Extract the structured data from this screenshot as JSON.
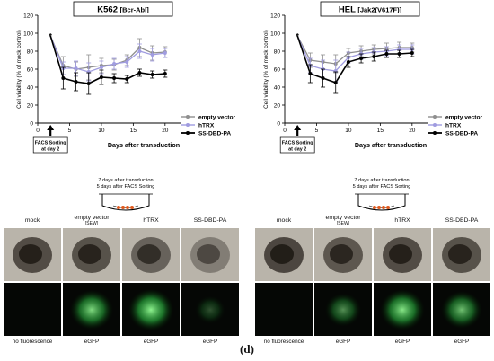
{
  "figure": {
    "panel_label": "(d)"
  },
  "chart_data": [
    {
      "type": "line",
      "title": "K562",
      "title_suffix": "[Bcr-Abl]",
      "xlabel": "Days after transduction",
      "ylabel": "Cell viability (% of mock control)",
      "xlim": [
        0,
        22
      ],
      "ylim": [
        0,
        120
      ],
      "xticks": [
        0,
        5,
        10,
        15,
        20
      ],
      "yticks": [
        0,
        20,
        40,
        60,
        80,
        100,
        120
      ],
      "grid": false,
      "legend_position": "right",
      "annotation": "FACS Sorting at day 2",
      "start_point": {
        "x": 2,
        "y": 97,
        "marker": "*"
      },
      "series": [
        {
          "name": "empty vector",
          "color": "#8f8f8f",
          "x": [
            2,
            4,
            6,
            8,
            10,
            12,
            14,
            16,
            18,
            20
          ],
          "y": [
            97,
            64,
            60,
            62,
            64,
            65,
            70,
            84,
            78,
            79
          ],
          "err": [
            0,
            10,
            8,
            14,
            8,
            6,
            6,
            10,
            8,
            6
          ]
        },
        {
          "name": "hTRX",
          "color": "#a09ce0",
          "x": [
            2,
            4,
            6,
            8,
            10,
            12,
            14,
            16,
            18,
            20
          ],
          "y": [
            97,
            61,
            61,
            57,
            62,
            66,
            68,
            80,
            76,
            78
          ],
          "err": [
            0,
            7,
            8,
            10,
            7,
            6,
            6,
            8,
            7,
            5
          ]
        },
        {
          "name": "SS-DBD-PA",
          "color": "#000000",
          "x": [
            2,
            4,
            6,
            8,
            10,
            12,
            14,
            16,
            18,
            20
          ],
          "y": [
            97,
            50,
            46,
            44,
            51,
            50,
            49,
            56,
            54,
            55
          ],
          "err": [
            0,
            12,
            10,
            12,
            8,
            5,
            4,
            4,
            4,
            4
          ]
        }
      ]
    },
    {
      "type": "line",
      "title": "HEL",
      "title_suffix": "[Jak2(V617F)]",
      "xlabel": "Days after transduction",
      "ylabel": "Cell viability (% of mock control)",
      "xlim": [
        0,
        22
      ],
      "ylim": [
        0,
        120
      ],
      "xticks": [
        0,
        5,
        10,
        15,
        20
      ],
      "yticks": [
        0,
        20,
        40,
        60,
        80,
        100,
        120
      ],
      "grid": false,
      "legend_position": "right",
      "annotation": "FACS Sorting at day 2",
      "start_point": {
        "x": 2,
        "y": 97,
        "marker": "*"
      },
      "series": [
        {
          "name": "empty vector",
          "color": "#8f8f8f",
          "x": [
            2,
            4,
            6,
            8,
            10,
            12,
            14,
            16,
            18,
            20
          ],
          "y": [
            97,
            70,
            68,
            66,
            78,
            80,
            82,
            83,
            84,
            84
          ],
          "err": [
            0,
            8,
            8,
            10,
            5,
            6,
            5,
            6,
            6,
            5
          ]
        },
        {
          "name": "hTRX",
          "color": "#a09ce0",
          "x": [
            2,
            4,
            6,
            8,
            10,
            12,
            14,
            16,
            18,
            20
          ],
          "y": [
            97,
            64,
            60,
            58,
            73,
            77,
            79,
            80,
            82,
            82
          ],
          "err": [
            0,
            8,
            10,
            12,
            6,
            6,
            5,
            5,
            5,
            5
          ]
        },
        {
          "name": "SS-DBD-PA",
          "color": "#000000",
          "x": [
            2,
            4,
            6,
            8,
            10,
            12,
            14,
            16,
            18,
            20
          ],
          "y": [
            97,
            55,
            50,
            45,
            68,
            72,
            74,
            77,
            77,
            78
          ],
          "err": [
            0,
            10,
            10,
            12,
            6,
            5,
            5,
            4,
            4,
            4
          ]
        }
      ]
    }
  ],
  "timeline": {
    "line1": "7 days after transduction",
    "line2": "5 days after FACS Sorting"
  },
  "microscopy": {
    "left": {
      "columns": [
        {
          "title": "mock",
          "subtitle": "",
          "caption": "no fluorescence",
          "brightness": 0.75,
          "glow": 0
        },
        {
          "title": "empty vector",
          "subtitle": "[SEW]",
          "caption": "eGFP",
          "brightness": 0.7,
          "glow": 0.85
        },
        {
          "title": "hTRX",
          "subtitle": "",
          "caption": "eGFP",
          "brightness": 0.55,
          "glow": 0.95
        },
        {
          "title": "SS-DBD-PA",
          "subtitle": "",
          "caption": "eGFP",
          "brightness": 0.3,
          "glow": 0.3
        }
      ]
    },
    "right": {
      "columns": [
        {
          "title": "mock",
          "subtitle": "",
          "caption": "no fluorescence",
          "brightness": 0.8,
          "glow": 0
        },
        {
          "title": "empty vector",
          "subtitle": "[SEW]",
          "caption": "eGFP",
          "brightness": 0.65,
          "glow": 0.55
        },
        {
          "title": "hTRX",
          "subtitle": "",
          "caption": "eGFP",
          "brightness": 0.75,
          "glow": 0.9
        },
        {
          "title": "SS-DBD-PA",
          "subtitle": "",
          "caption": "eGFP",
          "brightness": 0.7,
          "glow": 0.75
        }
      ]
    }
  }
}
